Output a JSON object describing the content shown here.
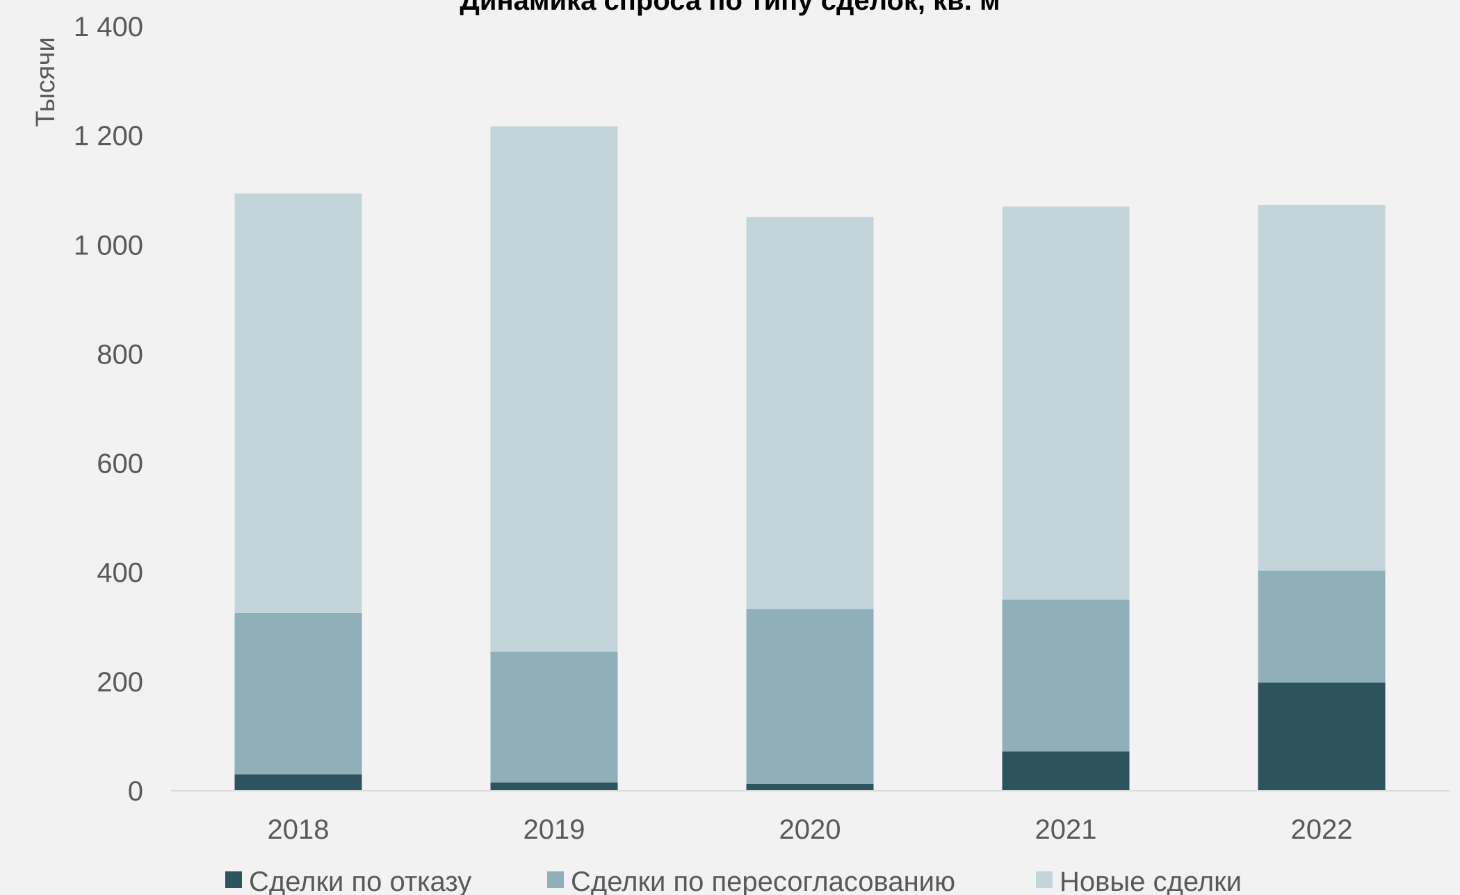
{
  "chart_data": {
    "type": "bar",
    "stacked": true,
    "title": "Динамика спроса по типу сделок, кв. м",
    "ylabel": "Тысячи",
    "xlabel": "",
    "ylim": [
      0,
      1400
    ],
    "yticks": [
      0,
      200,
      400,
      600,
      800,
      1000,
      1200,
      1400
    ],
    "ytick_labels": [
      "0",
      "200",
      "400",
      "600",
      "800",
      "1 000",
      "1 200",
      "1 400"
    ],
    "categories": [
      "2018",
      "2019",
      "2020",
      "2021",
      "2022"
    ],
    "series": [
      {
        "name": "Сделки по отказу",
        "color": "#2c535e",
        "values": [
          30,
          15,
          13,
          72,
          198
        ]
      },
      {
        "name": "Сделки по пересогласованию",
        "color": "#8fb0b9",
        "values": [
          296,
          240,
          320,
          278,
          205
        ]
      },
      {
        "name": "Новые сделки",
        "color": "#c3d5da",
        "values": [
          768,
          962,
          718,
          720,
          670
        ]
      }
    ],
    "legend": "bottom",
    "grid": false
  }
}
